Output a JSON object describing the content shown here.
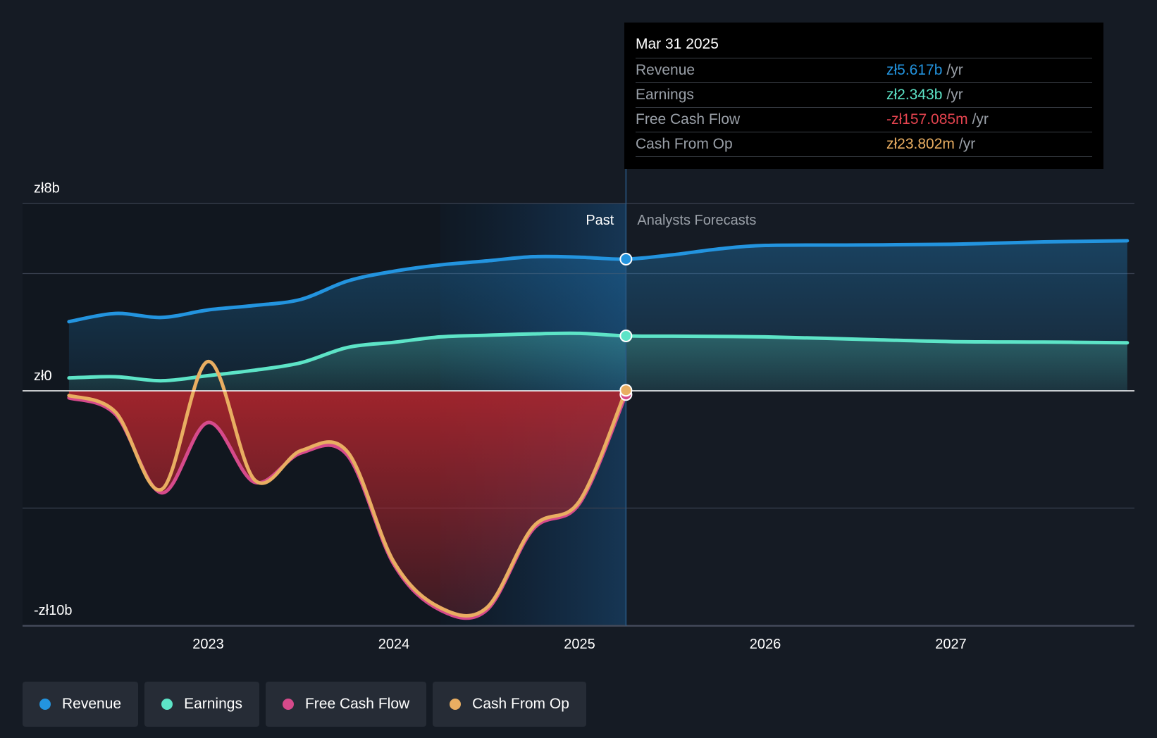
{
  "colors": {
    "background": "#151b24",
    "revenue": "#2394df",
    "earnings": "#5de4c7",
    "free_cash_flow": "#d64a8b",
    "cash_from_op": "#e9ae62",
    "negative_value": "#e5444f"
  },
  "tooltip": {
    "date": "Mar 31 2025",
    "rows": [
      {
        "label": "Revenue",
        "value": "zł5.617b",
        "unit": "/yr",
        "color": "#2394df"
      },
      {
        "label": "Earnings",
        "value": "zł2.343b",
        "unit": "/yr",
        "color": "#5de4c7"
      },
      {
        "label": "Free Cash Flow",
        "value": "-zł157.085m",
        "unit": "/yr",
        "color": "#e5444f"
      },
      {
        "label": "Cash From Op",
        "value": "zł23.802m",
        "unit": "/yr",
        "color": "#e9ae62"
      }
    ]
  },
  "legend": [
    {
      "label": "Revenue",
      "color": "#2394df"
    },
    {
      "label": "Earnings",
      "color": "#5de4c7"
    },
    {
      "label": "Free Cash Flow",
      "color": "#d64a8b"
    },
    {
      "label": "Cash From Op",
      "color": "#e9ae62"
    }
  ],
  "chart_data": {
    "type": "line",
    "xlim": [
      2022.25,
      2027.95
    ],
    "ylim": [
      -10,
      8
    ],
    "y_tick_labels": [
      {
        "value": 8,
        "label": "zł8b"
      },
      {
        "value": 0,
        "label": "zł0"
      },
      {
        "value": -10,
        "label": "-zł10b"
      }
    ],
    "x_ticks": [
      {
        "value": 2023,
        "label": "2023"
      },
      {
        "value": 2024,
        "label": "2024"
      },
      {
        "value": 2025,
        "label": "2025"
      },
      {
        "value": 2026,
        "label": "2026"
      },
      {
        "value": 2027,
        "label": "2027"
      }
    ],
    "gridlines_y": [
      8,
      5,
      0,
      -5,
      -10
    ],
    "past_label": "Past",
    "forecast_label": "Analysts Forecasts",
    "past_end_x": 2025.25,
    "highlight_start_x": 2024.25,
    "series": [
      {
        "name": "Revenue",
        "key": "revenue",
        "points": [
          [
            2022.25,
            2.95
          ],
          [
            2022.5,
            3.3
          ],
          [
            2022.75,
            3.13
          ],
          [
            2023.0,
            3.45
          ],
          [
            2023.25,
            3.64
          ],
          [
            2023.5,
            3.9
          ],
          [
            2023.75,
            4.68
          ],
          [
            2024.0,
            5.1
          ],
          [
            2024.25,
            5.37
          ],
          [
            2024.5,
            5.54
          ],
          [
            2024.75,
            5.72
          ],
          [
            2025.0,
            5.7
          ],
          [
            2025.25,
            5.617
          ],
          [
            2025.5,
            5.8
          ],
          [
            2025.75,
            6.05
          ],
          [
            2026.0,
            6.2
          ],
          [
            2026.5,
            6.22
          ],
          [
            2027.0,
            6.25
          ],
          [
            2027.5,
            6.35
          ],
          [
            2027.95,
            6.4
          ]
        ],
        "forecast": true
      },
      {
        "name": "Earnings",
        "key": "earnings",
        "points": [
          [
            2022.25,
            0.55
          ],
          [
            2022.5,
            0.6
          ],
          [
            2022.75,
            0.43
          ],
          [
            2023.0,
            0.65
          ],
          [
            2023.25,
            0.88
          ],
          [
            2023.5,
            1.2
          ],
          [
            2023.75,
            1.85
          ],
          [
            2024.0,
            2.07
          ],
          [
            2024.25,
            2.3
          ],
          [
            2024.5,
            2.37
          ],
          [
            2024.75,
            2.43
          ],
          [
            2025.0,
            2.45
          ],
          [
            2025.25,
            2.343
          ],
          [
            2025.5,
            2.33
          ],
          [
            2026.0,
            2.3
          ],
          [
            2026.5,
            2.2
          ],
          [
            2027.0,
            2.1
          ],
          [
            2027.5,
            2.08
          ],
          [
            2027.95,
            2.05
          ]
        ],
        "forecast": true
      },
      {
        "name": "Free Cash Flow",
        "key": "free_cash_flow",
        "points": [
          [
            2022.25,
            -0.3
          ],
          [
            2022.5,
            -1.0
          ],
          [
            2022.75,
            -4.35
          ],
          [
            2023.0,
            -1.35
          ],
          [
            2023.25,
            -3.9
          ],
          [
            2023.5,
            -2.65
          ],
          [
            2023.75,
            -2.75
          ],
          [
            2024.0,
            -7.4
          ],
          [
            2024.25,
            -9.35
          ],
          [
            2024.5,
            -9.35
          ],
          [
            2024.75,
            -5.9
          ],
          [
            2025.0,
            -4.8
          ],
          [
            2025.25,
            -0.157
          ]
        ],
        "forecast": false
      },
      {
        "name": "Cash From Op",
        "key": "cash_from_op",
        "points": [
          [
            2022.25,
            -0.2
          ],
          [
            2022.5,
            -0.9
          ],
          [
            2022.75,
            -4.2
          ],
          [
            2023.0,
            1.25
          ],
          [
            2023.25,
            -3.8
          ],
          [
            2023.5,
            -2.55
          ],
          [
            2023.75,
            -2.6
          ],
          [
            2024.0,
            -7.3
          ],
          [
            2024.25,
            -9.25
          ],
          [
            2024.5,
            -9.25
          ],
          [
            2024.75,
            -5.8
          ],
          [
            2025.0,
            -4.7
          ],
          [
            2025.25,
            0.024
          ]
        ],
        "forecast": false
      }
    ]
  }
}
